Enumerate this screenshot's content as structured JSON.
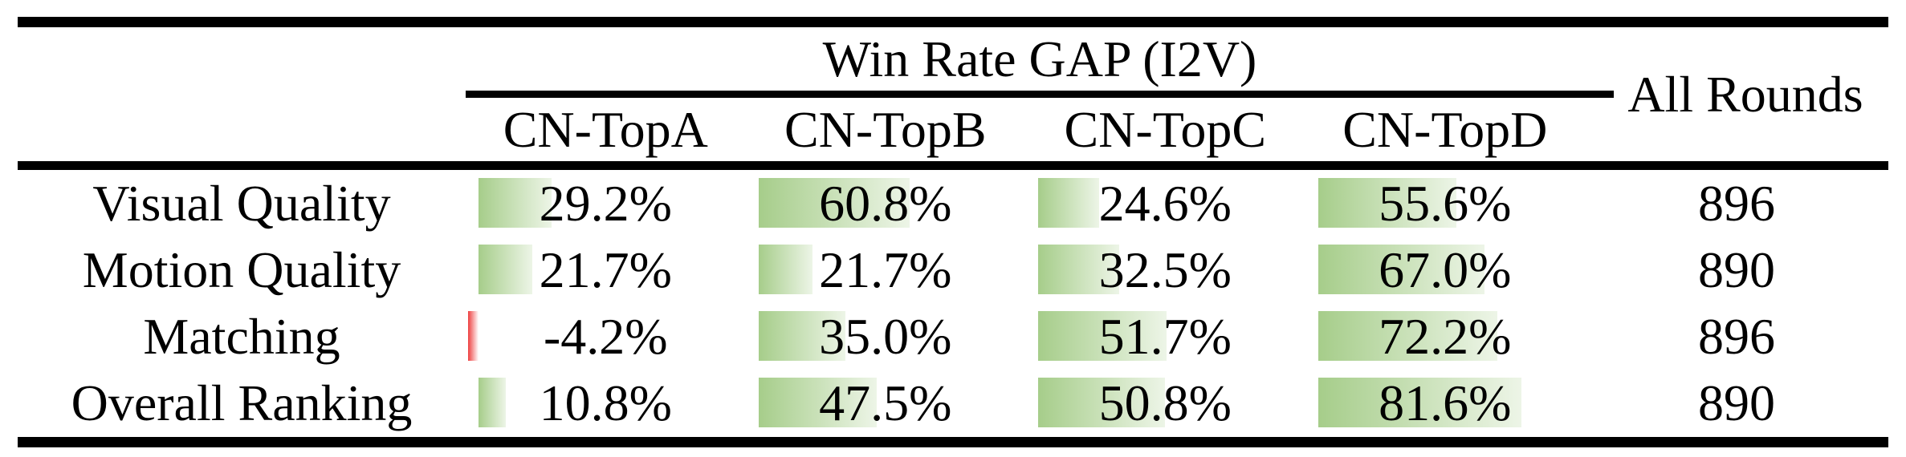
{
  "table": {
    "group_header": "Win Rate GAP (I2V)",
    "all_rounds_header": "All Rounds",
    "columns": [
      "CN-TopA",
      "CN-TopB",
      "CN-TopC",
      "CN-TopD"
    ],
    "rows": [
      {
        "label": "Visual Quality",
        "cells": [
          {
            "text": "29.2%",
            "value": 29.2
          },
          {
            "text": "60.8%",
            "value": 60.8
          },
          {
            "text": "24.6%",
            "value": 24.6
          },
          {
            "text": "55.6%",
            "value": 55.6
          }
        ],
        "rounds": "896"
      },
      {
        "label": "Motion Quality",
        "cells": [
          {
            "text": "21.7%",
            "value": 21.7
          },
          {
            "text": "21.7%",
            "value": 21.7
          },
          {
            "text": "32.5%",
            "value": 32.5
          },
          {
            "text": "67.0%",
            "value": 67.0
          }
        ],
        "rounds": "890"
      },
      {
        "label": "Matching",
        "cells": [
          {
            "text": "-4.2%",
            "value": -4.2
          },
          {
            "text": "35.0%",
            "value": 35.0
          },
          {
            "text": "51.7%",
            "value": 51.7
          },
          {
            "text": "72.2%",
            "value": 72.2
          }
        ],
        "rounds": "896"
      },
      {
        "label": "Overall Ranking",
        "cells": [
          {
            "text": "10.8%",
            "value": 10.8
          },
          {
            "text": "47.5%",
            "value": 47.5
          },
          {
            "text": "50.8%",
            "value": 50.8
          },
          {
            "text": "81.6%",
            "value": 81.6
          }
        ],
        "rounds": "890"
      }
    ]
  },
  "colors": {
    "bar_positive_start": "#a6cd8a",
    "bar_positive_end": "#edf5e7",
    "bar_negative_start": "#ee4040",
    "bar_negative_end": "#ffffff",
    "rule_color": "#000000",
    "text_color": "#000000"
  },
  "chart_data": {
    "type": "table",
    "title": "Win Rate GAP (I2V)",
    "columns": [
      "CN-TopA",
      "CN-TopB",
      "CN-TopC",
      "CN-TopD",
      "All Rounds"
    ],
    "row_labels": [
      "Visual Quality",
      "Motion Quality",
      "Matching",
      "Overall Ranking"
    ],
    "series": [
      {
        "name": "CN-TopA",
        "values": [
          29.2,
          21.7,
          -4.2,
          10.8
        ]
      },
      {
        "name": "CN-TopB",
        "values": [
          60.8,
          21.7,
          35.0,
          47.5
        ]
      },
      {
        "name": "CN-TopC",
        "values": [
          24.6,
          32.5,
          51.7,
          50.8
        ]
      },
      {
        "name": "CN-TopD",
        "values": [
          55.6,
          67.0,
          72.2,
          81.6
        ]
      }
    ],
    "all_rounds": [
      896,
      890,
      896,
      890
    ],
    "unit": "percent",
    "notes": "in-cell horizontal bars proportional to percentage; positive bars green gradient, negative bars red"
  }
}
